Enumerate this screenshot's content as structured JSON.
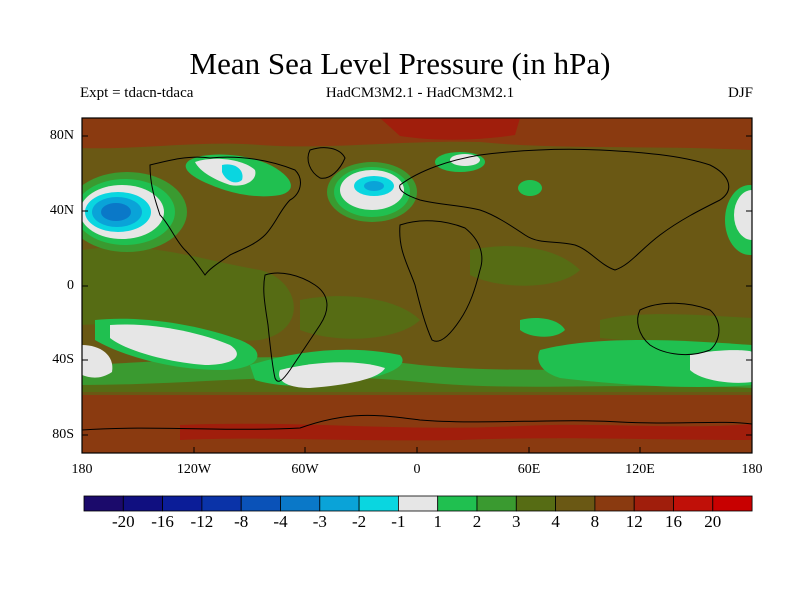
{
  "header": {
    "title": "Mean Sea Level Pressure (in hPa)",
    "experiment": "Expt = tdacn-tdaca",
    "models": "HadCM3M2.1 - HadCM3M2.1",
    "season": "DJF"
  },
  "map": {
    "lat_labels": [
      "80N",
      "40N",
      "0",
      "40S",
      "80S"
    ],
    "lon_labels": [
      "180",
      "120W",
      "60W",
      "0",
      "60E",
      "120E",
      "180"
    ]
  },
  "colorbar": {
    "labels": [
      "-20",
      "-16",
      "-12",
      "-8",
      "-4",
      "-3",
      "-2",
      "-1",
      "1",
      "2",
      "3",
      "4",
      "8",
      "12",
      "16",
      "20"
    ],
    "colors": [
      "#1b0a6b",
      "#100f80",
      "#0b1d98",
      "#0a33a8",
      "#0a52b8",
      "#0a78c8",
      "#0aa3d8",
      "#0ad6e0",
      "#e6e6e6",
      "#20c050",
      "#3a9a30",
      "#566c14",
      "#6a5814",
      "#8a3a10",
      "#a01e0c",
      "#c01008",
      "#c80000"
    ]
  }
}
